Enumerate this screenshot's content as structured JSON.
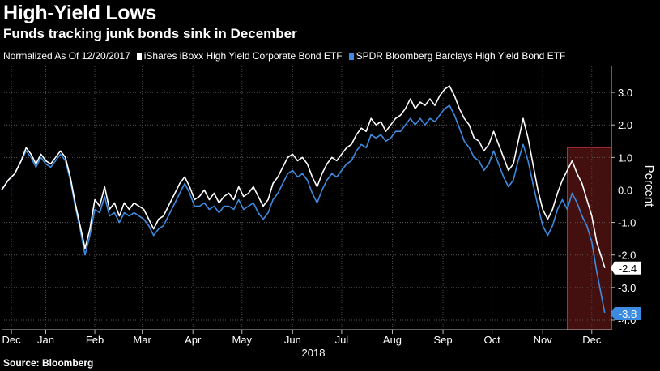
{
  "header": {
    "title": "High-Yield Lows",
    "subtitle": "Funds tracking junk bonds sink in December"
  },
  "legend": {
    "note": "Normalized As Of 12/20/2017",
    "items": [
      {
        "label": "iShares iBoxx High Yield Corporate Bond ETF",
        "color": "#ffffff"
      },
      {
        "label": "SPDR Bloomberg Barclays High Yield Bond ETF",
        "color": "#3d8be0"
      }
    ]
  },
  "footer": {
    "source": "Source: Bloomberg"
  },
  "chart_data": {
    "type": "line",
    "ylabel": "Percent",
    "ylim": [
      -4.3,
      3.8
    ],
    "yticks": [
      3.0,
      2.0,
      1.0,
      0.0,
      -1.0,
      -2.0,
      -3.0,
      -4.0
    ],
    "ytick_labels": [
      "3.0",
      "2.0",
      "1.0",
      "0.0",
      "-1.0",
      "-2.0",
      "-3.0",
      "-4.0"
    ],
    "xlim": [
      "2017-12-20",
      "2018-12-28"
    ],
    "xticks": [
      {
        "label": "Dec",
        "date": "2017-12-26"
      },
      {
        "label": "Jan",
        "date": "2018-01-16"
      },
      {
        "label": "Feb",
        "date": "2018-02-15"
      },
      {
        "label": "Mar",
        "date": "2018-03-16"
      },
      {
        "label": "Apr",
        "date": "2018-04-16"
      },
      {
        "label": "May",
        "date": "2018-05-16"
      },
      {
        "label": "Jun",
        "date": "2018-06-16"
      },
      {
        "label": "Jul",
        "date": "2018-07-16"
      },
      {
        "label": "Aug",
        "date": "2018-08-16"
      },
      {
        "label": "Sep",
        "date": "2018-09-16"
      },
      {
        "label": "Oct",
        "date": "2018-10-16"
      },
      {
        "label": "Nov",
        "date": "2018-11-16"
      },
      {
        "label": "Dec",
        "date": "2018-12-16"
      }
    ],
    "year_label": "2018",
    "grid": true,
    "highlight": {
      "from": "2018-12-01",
      "to": "2018-12-28",
      "color": "#5a1414"
    },
    "series": [
      {
        "name": "iShares iBoxx High Yield Corporate Bond ETF",
        "color": "#ffffff",
        "end_label": "-2.4",
        "points": [
          [
            "2017-12-20",
            0.0
          ],
          [
            "2017-12-24",
            0.3
          ],
          [
            "2017-12-28",
            0.5
          ],
          [
            "2018-01-01",
            0.9
          ],
          [
            "2018-01-04",
            1.3
          ],
          [
            "2018-01-07",
            1.1
          ],
          [
            "2018-01-10",
            0.8
          ],
          [
            "2018-01-13",
            1.1
          ],
          [
            "2018-01-16",
            0.9
          ],
          [
            "2018-01-19",
            0.8
          ],
          [
            "2018-01-22",
            1.0
          ],
          [
            "2018-01-25",
            1.2
          ],
          [
            "2018-01-28",
            1.0
          ],
          [
            "2018-01-31",
            0.4
          ],
          [
            "2018-02-03",
            -0.4
          ],
          [
            "2018-02-06",
            -1.1
          ],
          [
            "2018-02-09",
            -1.8
          ],
          [
            "2018-02-12",
            -1.2
          ],
          [
            "2018-02-15",
            -0.3
          ],
          [
            "2018-02-18",
            -0.5
          ],
          [
            "2018-02-21",
            0.1
          ],
          [
            "2018-02-24",
            -0.6
          ],
          [
            "2018-02-27",
            -0.4
          ],
          [
            "2018-03-02",
            -0.8
          ],
          [
            "2018-03-05",
            -0.4
          ],
          [
            "2018-03-08",
            -0.6
          ],
          [
            "2018-03-11",
            -0.4
          ],
          [
            "2018-03-14",
            -0.5
          ],
          [
            "2018-03-17",
            -0.6
          ],
          [
            "2018-03-20",
            -0.9
          ],
          [
            "2018-03-23",
            -1.2
          ],
          [
            "2018-03-26",
            -0.9
          ],
          [
            "2018-03-29",
            -0.8
          ],
          [
            "2018-04-02",
            -0.4
          ],
          [
            "2018-04-05",
            -0.1
          ],
          [
            "2018-04-08",
            0.2
          ],
          [
            "2018-04-11",
            0.4
          ],
          [
            "2018-04-14",
            0.1
          ],
          [
            "2018-04-17",
            -0.3
          ],
          [
            "2018-04-20",
            -0.2
          ],
          [
            "2018-04-23",
            0.0
          ],
          [
            "2018-04-26",
            -0.3
          ],
          [
            "2018-04-29",
            -0.1
          ],
          [
            "2018-05-02",
            -0.4
          ],
          [
            "2018-05-05",
            -0.2
          ],
          [
            "2018-05-08",
            -0.1
          ],
          [
            "2018-05-11",
            -0.3
          ],
          [
            "2018-05-14",
            0.1
          ],
          [
            "2018-05-17",
            -0.2
          ],
          [
            "2018-05-20",
            -0.1
          ],
          [
            "2018-05-23",
            0.1
          ],
          [
            "2018-05-26",
            -0.2
          ],
          [
            "2018-05-29",
            -0.5
          ],
          [
            "2018-06-01",
            -0.3
          ],
          [
            "2018-06-04",
            0.2
          ],
          [
            "2018-06-07",
            0.4
          ],
          [
            "2018-06-10",
            0.7
          ],
          [
            "2018-06-13",
            1.0
          ],
          [
            "2018-06-16",
            1.1
          ],
          [
            "2018-06-19",
            0.9
          ],
          [
            "2018-06-22",
            1.0
          ],
          [
            "2018-06-25",
            0.8
          ],
          [
            "2018-06-28",
            0.4
          ],
          [
            "2018-07-01",
            0.1
          ],
          [
            "2018-07-04",
            0.5
          ],
          [
            "2018-07-07",
            0.8
          ],
          [
            "2018-07-10",
            1.0
          ],
          [
            "2018-07-13",
            0.9
          ],
          [
            "2018-07-16",
            1.1
          ],
          [
            "2018-07-19",
            1.3
          ],
          [
            "2018-07-22",
            1.4
          ],
          [
            "2018-07-25",
            1.7
          ],
          [
            "2018-07-28",
            1.9
          ],
          [
            "2018-07-31",
            1.8
          ],
          [
            "2018-08-03",
            2.2
          ],
          [
            "2018-08-06",
            2.0
          ],
          [
            "2018-08-09",
            2.1
          ],
          [
            "2018-08-12",
            1.8
          ],
          [
            "2018-08-15",
            2.0
          ],
          [
            "2018-08-18",
            2.2
          ],
          [
            "2018-08-21",
            2.3
          ],
          [
            "2018-08-24",
            2.5
          ],
          [
            "2018-08-27",
            2.8
          ],
          [
            "2018-08-30",
            2.5
          ],
          [
            "2018-09-02",
            2.7
          ],
          [
            "2018-09-05",
            2.6
          ],
          [
            "2018-09-08",
            2.8
          ],
          [
            "2018-09-11",
            2.6
          ],
          [
            "2018-09-14",
            2.9
          ],
          [
            "2018-09-17",
            3.1
          ],
          [
            "2018-09-20",
            3.2
          ],
          [
            "2018-09-23",
            2.9
          ],
          [
            "2018-09-26",
            2.5
          ],
          [
            "2018-09-29",
            2.2
          ],
          [
            "2018-10-02",
            2.0
          ],
          [
            "2018-10-05",
            1.6
          ],
          [
            "2018-10-08",
            1.5
          ],
          [
            "2018-10-11",
            1.2
          ],
          [
            "2018-10-14",
            1.4
          ],
          [
            "2018-10-17",
            1.8
          ],
          [
            "2018-10-20",
            1.4
          ],
          [
            "2018-10-23",
            1.0
          ],
          [
            "2018-10-26",
            0.6
          ],
          [
            "2018-10-29",
            0.8
          ],
          [
            "2018-11-01",
            1.5
          ],
          [
            "2018-11-04",
            2.2
          ],
          [
            "2018-11-07",
            1.6
          ],
          [
            "2018-11-10",
            0.8
          ],
          [
            "2018-11-13",
            0.0
          ],
          [
            "2018-11-16",
            -0.6
          ],
          [
            "2018-11-19",
            -0.9
          ],
          [
            "2018-11-22",
            -0.6
          ],
          [
            "2018-11-25",
            -0.1
          ],
          [
            "2018-11-28",
            0.3
          ],
          [
            "2018-12-01",
            0.6
          ],
          [
            "2018-12-04",
            0.9
          ],
          [
            "2018-12-07",
            0.5
          ],
          [
            "2018-12-10",
            0.2
          ],
          [
            "2018-12-13",
            -0.3
          ],
          [
            "2018-12-16",
            -0.8
          ],
          [
            "2018-12-19",
            -1.6
          ],
          [
            "2018-12-24",
            -2.4
          ]
        ]
      },
      {
        "name": "SPDR Bloomberg Barclays High Yield Bond ETF",
        "color": "#3d8be0",
        "end_label": "-3.8",
        "points": [
          [
            "2017-12-20",
            0.0
          ],
          [
            "2017-12-24",
            0.3
          ],
          [
            "2017-12-28",
            0.5
          ],
          [
            "2018-01-01",
            0.9
          ],
          [
            "2018-01-04",
            1.2
          ],
          [
            "2018-01-07",
            1.0
          ],
          [
            "2018-01-10",
            0.7
          ],
          [
            "2018-01-13",
            1.0
          ],
          [
            "2018-01-16",
            0.8
          ],
          [
            "2018-01-19",
            0.7
          ],
          [
            "2018-01-22",
            0.9
          ],
          [
            "2018-01-25",
            1.1
          ],
          [
            "2018-01-28",
            0.9
          ],
          [
            "2018-01-31",
            0.3
          ],
          [
            "2018-02-03",
            -0.5
          ],
          [
            "2018-02-06",
            -1.2
          ],
          [
            "2018-02-09",
            -2.0
          ],
          [
            "2018-02-12",
            -1.4
          ],
          [
            "2018-02-15",
            -0.6
          ],
          [
            "2018-02-18",
            -0.7
          ],
          [
            "2018-02-21",
            -0.2
          ],
          [
            "2018-02-24",
            -0.8
          ],
          [
            "2018-02-27",
            -0.7
          ],
          [
            "2018-03-02",
            -1.0
          ],
          [
            "2018-03-05",
            -0.7
          ],
          [
            "2018-03-08",
            -0.8
          ],
          [
            "2018-03-11",
            -0.7
          ],
          [
            "2018-03-14",
            -0.8
          ],
          [
            "2018-03-17",
            -0.9
          ],
          [
            "2018-03-20",
            -1.1
          ],
          [
            "2018-03-23",
            -1.4
          ],
          [
            "2018-03-26",
            -1.2
          ],
          [
            "2018-03-29",
            -1.1
          ],
          [
            "2018-04-02",
            -0.7
          ],
          [
            "2018-04-05",
            -0.4
          ],
          [
            "2018-04-08",
            -0.1
          ],
          [
            "2018-04-11",
            0.2
          ],
          [
            "2018-04-14",
            -0.1
          ],
          [
            "2018-04-17",
            -0.5
          ],
          [
            "2018-04-20",
            -0.5
          ],
          [
            "2018-04-23",
            -0.4
          ],
          [
            "2018-04-26",
            -0.6
          ],
          [
            "2018-04-29",
            -0.5
          ],
          [
            "2018-05-02",
            -0.7
          ],
          [
            "2018-05-05",
            -0.5
          ],
          [
            "2018-05-08",
            -0.5
          ],
          [
            "2018-05-11",
            -0.6
          ],
          [
            "2018-05-14",
            -0.3
          ],
          [
            "2018-05-17",
            -0.6
          ],
          [
            "2018-05-20",
            -0.5
          ],
          [
            "2018-05-23",
            -0.4
          ],
          [
            "2018-05-26",
            -0.7
          ],
          [
            "2018-05-29",
            -0.9
          ],
          [
            "2018-06-01",
            -0.7
          ],
          [
            "2018-06-04",
            -0.3
          ],
          [
            "2018-06-07",
            -0.1
          ],
          [
            "2018-06-10",
            0.2
          ],
          [
            "2018-06-13",
            0.5
          ],
          [
            "2018-06-16",
            0.6
          ],
          [
            "2018-06-19",
            0.4
          ],
          [
            "2018-06-22",
            0.5
          ],
          [
            "2018-06-25",
            0.3
          ],
          [
            "2018-06-28",
            -0.1
          ],
          [
            "2018-07-01",
            -0.4
          ],
          [
            "2018-07-04",
            0.0
          ],
          [
            "2018-07-07",
            0.3
          ],
          [
            "2018-07-10",
            0.5
          ],
          [
            "2018-07-13",
            0.4
          ],
          [
            "2018-07-16",
            0.6
          ],
          [
            "2018-07-19",
            0.8
          ],
          [
            "2018-07-22",
            0.9
          ],
          [
            "2018-07-25",
            1.2
          ],
          [
            "2018-07-28",
            1.4
          ],
          [
            "2018-07-31",
            1.3
          ],
          [
            "2018-08-03",
            1.7
          ],
          [
            "2018-08-06",
            1.6
          ],
          [
            "2018-08-09",
            1.7
          ],
          [
            "2018-08-12",
            1.5
          ],
          [
            "2018-08-15",
            1.6
          ],
          [
            "2018-08-18",
            1.8
          ],
          [
            "2018-08-21",
            1.8
          ],
          [
            "2018-08-24",
            2.0
          ],
          [
            "2018-08-27",
            2.2
          ],
          [
            "2018-08-30",
            2.0
          ],
          [
            "2018-09-02",
            2.2
          ],
          [
            "2018-09-05",
            2.0
          ],
          [
            "2018-09-08",
            2.2
          ],
          [
            "2018-09-11",
            2.1
          ],
          [
            "2018-09-14",
            2.3
          ],
          [
            "2018-09-17",
            2.5
          ],
          [
            "2018-09-20",
            2.6
          ],
          [
            "2018-09-23",
            2.3
          ],
          [
            "2018-09-26",
            1.9
          ],
          [
            "2018-09-29",
            1.5
          ],
          [
            "2018-10-02",
            1.3
          ],
          [
            "2018-10-05",
            1.0
          ],
          [
            "2018-10-08",
            0.9
          ],
          [
            "2018-10-11",
            0.6
          ],
          [
            "2018-10-14",
            0.8
          ],
          [
            "2018-10-17",
            1.2
          ],
          [
            "2018-10-20",
            0.8
          ],
          [
            "2018-10-23",
            0.4
          ],
          [
            "2018-10-26",
            0.1
          ],
          [
            "2018-10-29",
            0.3
          ],
          [
            "2018-11-01",
            0.9
          ],
          [
            "2018-11-04",
            1.4
          ],
          [
            "2018-11-07",
            0.9
          ],
          [
            "2018-11-10",
            0.2
          ],
          [
            "2018-11-13",
            -0.5
          ],
          [
            "2018-11-16",
            -1.1
          ],
          [
            "2018-11-19",
            -1.4
          ],
          [
            "2018-11-22",
            -1.1
          ],
          [
            "2018-11-25",
            -0.6
          ],
          [
            "2018-11-28",
            -0.3
          ],
          [
            "2018-12-01",
            -0.6
          ],
          [
            "2018-12-04",
            -0.1
          ],
          [
            "2018-12-07",
            -0.4
          ],
          [
            "2018-12-10",
            -0.8
          ],
          [
            "2018-12-13",
            -1.1
          ],
          [
            "2018-12-16",
            -1.6
          ],
          [
            "2018-12-19",
            -2.5
          ],
          [
            "2018-12-24",
            -3.8
          ]
        ]
      }
    ]
  }
}
